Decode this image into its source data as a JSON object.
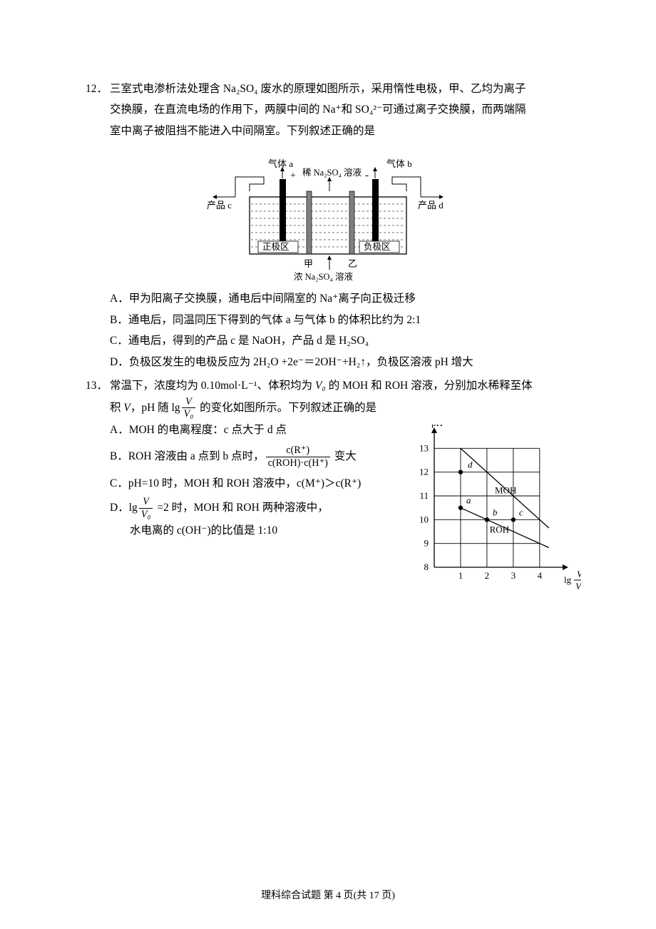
{
  "q12": {
    "num": "12．",
    "stem1": "三室式电渗析法处理含 Na₂SO₄ 废水的原理如图所示，采用惰性电极，甲、乙均为离子",
    "stem2": "交换膜，在直流电场的作用下，两膜中间的 Na⁺和 SO₄²⁻可通过离子交换膜，而两端隔",
    "stem3": "室中离子被阻挡不能进入中间隔室。下列叙述正确的是",
    "optA": "A．甲为阳离子交换膜，通电后中间隔室的 Na⁺离子向正极迁移",
    "optB": "B．通电后，同温同压下得到的气体 a 与气体 b 的体积比约为 2:1",
    "optC": "C．通电后，得到的产品 c 是 NaOH，产品 d 是 H₂SO₄",
    "optD": "D．负极区发生的电极反应为 2H₂O +2e⁻＝2OH⁻+H₂↑，负极区溶液 pH 增大",
    "diagram": {
      "gas_a": "气体 a",
      "gas_b": "气体 b",
      "plus": "+",
      "minus": "-",
      "dilute": "稀 Na₂SO₄ 溶液",
      "product_c": "产品 c",
      "product_d": "产品 d",
      "pos_zone": "正极区",
      "neg_zone": "负极区",
      "jia": "甲",
      "yi": "乙",
      "conc": "浓 Na₂SO₄ 溶液",
      "colors": {
        "electrode": "#000000",
        "membrane": "#808080",
        "tank_border": "#000000",
        "liquid_dash": "#444444",
        "background": "#ffffff"
      }
    }
  },
  "q13": {
    "num": "13．",
    "stem1_a": "常温下，浓度均为 0.10mol·L⁻¹、体积均为 ",
    "stem1_V0": "V₀",
    "stem1_b": " 的 MOH 和 ROH 溶液，分别加水稀释至体",
    "stem2_a": "积 ",
    "stem2_V": "V",
    "stem2_b": "，pH 随 ",
    "stem2_c": " 的变化如图所示。下列叙述正确的是",
    "frac1_num": "V",
    "frac1_den": "V₀",
    "lg": "lg",
    "optA": "A．MOH 的电离程度：c 点大于 d 点",
    "optB_a": "B．ROH 溶液由 a 点到 b 点时，",
    "optB_b": " 变大",
    "optB_frac_num": "c(R⁺)",
    "optB_frac_den": "c(ROH)·c(H⁺)",
    "optC": "C．pH=10 时，MOH 和 ROH 溶液中，c(M⁺)＞c(R⁺)",
    "optD_a": "D．",
    "optD_b": " =2 时，MOH 和 ROH 两种溶液中，",
    "optD_c": "水电离的 c(OH⁻)的比值是 1:10",
    "chart": {
      "type": "line",
      "xlabel_prefix": "lg",
      "xfrac_num": "V",
      "xfrac_den": "Vₒ",
      "ylabel": "pH",
      "series": [
        {
          "name": "MOH",
          "points": [
            [
              1,
              13
            ],
            [
              4,
              10
            ]
          ]
        },
        {
          "name": "ROH",
          "points": [
            [
              1,
              10.5
            ],
            [
              4,
              9
            ]
          ]
        }
      ],
      "marks": {
        "d": [
          1,
          12
        ],
        "a": [
          1,
          10.5
        ],
        "b": [
          2,
          10
        ],
        "c": [
          3,
          10
        ]
      },
      "label_MOH": "MOH",
      "label_ROH": "ROH",
      "xlim": [
        0,
        4.6
      ],
      "ylim": [
        8,
        13.4
      ],
      "xticks": [
        1,
        2,
        3,
        4
      ],
      "yticks": [
        8,
        9,
        10,
        11,
        12,
        13
      ],
      "colors": {
        "axis": "#000000",
        "grid": "#000000",
        "line": "#000000",
        "marker_fill": "#000000",
        "background": "#ffffff"
      },
      "line_width": 1.3,
      "marker_r": 3.2,
      "font_size": 13
    }
  },
  "footer": "理科综合试题  第 4 页(共 17 页)"
}
